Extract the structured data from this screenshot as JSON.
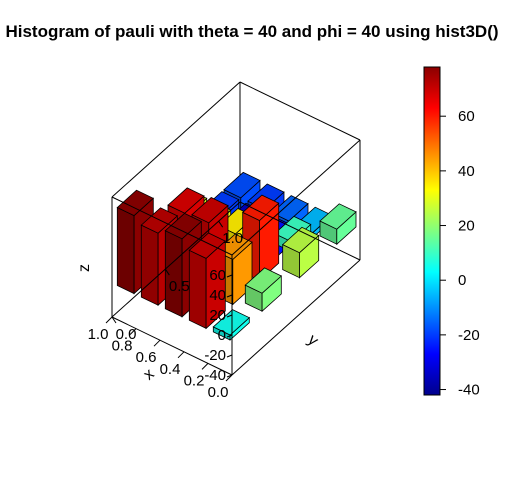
{
  "chart_data": {
    "type": "bar",
    "variant": "3d-histogram",
    "title": "Histogram of pauli with theta = 40 and phi = 40 using hist3D()",
    "xlabel": "x",
    "ylabel": "y",
    "zlabel": "z",
    "x_ticks": [
      "0.0",
      "0.2",
      "0.4",
      "0.6",
      "0.8",
      "1.0"
    ],
    "y_ticks": [
      "0.0",
      "0.5",
      "1.0"
    ],
    "z_ticks": [
      "-40",
      "-20",
      "0",
      "20",
      "40",
      "60"
    ],
    "xlim": [
      0,
      1
    ],
    "ylim": [
      0,
      1.2
    ],
    "zlim": [
      -40,
      80
    ],
    "bars_shown": "approximate selection of visible bars",
    "bars": [
      {
        "x": 0.05,
        "y": 0.05,
        "z": 5
      },
      {
        "x": 0.05,
        "y": 0.35,
        "z": 18
      },
      {
        "x": 0.05,
        "y": 0.7,
        "z": 25
      },
      {
        "x": 0.05,
        "y": 1.05,
        "z": 15
      },
      {
        "x": 0.25,
        "y": 0.05,
        "z": 70
      },
      {
        "x": 0.25,
        "y": 0.3,
        "z": 45
      },
      {
        "x": 0.25,
        "y": 0.55,
        "z": 60
      },
      {
        "x": 0.25,
        "y": 0.85,
        "z": 10
      },
      {
        "x": 0.25,
        "y": 1.05,
        "z": -5
      },
      {
        "x": 0.45,
        "y": 0.05,
        "z": 78
      },
      {
        "x": 0.45,
        "y": 0.3,
        "z": 70
      },
      {
        "x": 0.45,
        "y": 0.55,
        "z": 35
      },
      {
        "x": 0.45,
        "y": 0.85,
        "z": -25
      },
      {
        "x": 0.45,
        "y": 1.05,
        "z": -15
      },
      {
        "x": 0.65,
        "y": 0.05,
        "z": 72
      },
      {
        "x": 0.65,
        "y": 0.3,
        "z": 68
      },
      {
        "x": 0.65,
        "y": 0.55,
        "z": 30
      },
      {
        "x": 0.65,
        "y": 0.85,
        "z": -35
      },
      {
        "x": 0.65,
        "y": 1.05,
        "z": -20
      },
      {
        "x": 0.85,
        "y": 0.05,
        "z": 78
      },
      {
        "x": 0.85,
        "y": 0.3,
        "z": 22
      },
      {
        "x": 0.85,
        "y": 0.55,
        "z": 30
      },
      {
        "x": 0.85,
        "y": 0.85,
        "z": -20
      },
      {
        "x": 0.85,
        "y": 1.05,
        "z": -18
      }
    ],
    "colorbar": {
      "ticks": [
        "60",
        "40",
        "20",
        "0",
        "-20",
        "-40"
      ],
      "range": [
        -42,
        78
      ],
      "colors": [
        "#00008B",
        "#0000FF",
        "#0080FF",
        "#00FFFF",
        "#80FF80",
        "#FFFF00",
        "#FF8000",
        "#FF0000",
        "#8B0000"
      ]
    }
  }
}
